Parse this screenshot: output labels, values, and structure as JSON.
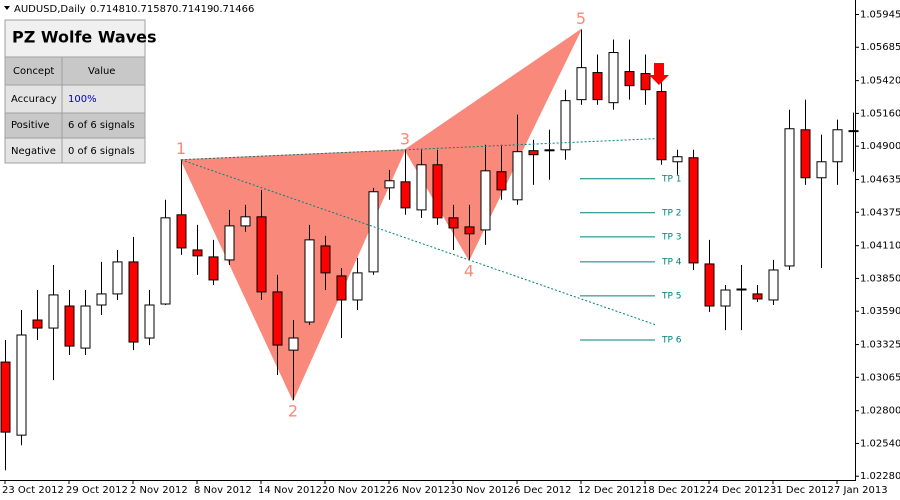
{
  "header": {
    "symbol": "AUDUSD,Daily",
    "ohlc": [
      0.71481,
      0.71587,
      0.71419,
      0.71466
    ]
  },
  "panel": {
    "title": "PZ Wolfe Waves",
    "columns": [
      "Concept",
      "Value"
    ],
    "rows": [
      [
        "Accuracy",
        "100%"
      ],
      [
        "Positive",
        "6 of 6 signals"
      ],
      [
        "Negative",
        "0 of 6 signals"
      ]
    ]
  },
  "chart_data": {
    "type": "candlestick",
    "categories": [
      "23 Oct 2012",
      null,
      null,
      null,
      "29 Oct 2012",
      null,
      null,
      null,
      "2 Nov 2012",
      null,
      null,
      null,
      "8 Nov 2012",
      null,
      null,
      null,
      "14 Nov 2012",
      null,
      null,
      null,
      "20 Nov 2012",
      null,
      null,
      null,
      "26 Nov 2012",
      null,
      null,
      null,
      "30 Nov 2012",
      null,
      null,
      null,
      "6 Dec 2012",
      null,
      null,
      null,
      "12 Dec 2012",
      null,
      null,
      null,
      "18 Dec 2012",
      null,
      null,
      null,
      "24 Dec 2012",
      null,
      null,
      null,
      "31 Dec 2012",
      null,
      null,
      null,
      "7 Jan 2013",
      null
    ],
    "open": [
      1.03186,
      1.02606,
      1.0352,
      1.03456,
      1.03631,
      1.03297,
      1.03639,
      1.03727,
      1.03981,
      1.03377,
      1.03647,
      1.04355,
      1.04076,
      1.04021,
      1.03997,
      1.04267,
      1.04339,
      1.03743,
      1.03281,
      1.03504,
      1.04108,
      1.0387,
      1.03679,
      1.03902,
      1.04569,
      1.04617,
      1.04394,
      1.04752,
      1.04331,
      1.04259,
      1.04235,
      1.04697,
      1.04474,
      1.04864,
      1.04871,
      1.04871,
      1.05269,
      1.05484,
      1.05245,
      1.05492,
      1.05476,
      1.05333,
      1.04776,
      1.04808,
      1.03965,
      1.03631,
      1.03766,
      1.03727,
      1.03679,
      1.03949,
      1.0503,
      1.04649,
      1.04776,
      1.05023
    ],
    "high": [
      1.03361,
      1.03599,
      1.03758,
      1.03957,
      1.03758,
      1.03758,
      1.03981,
      1.04076,
      1.0418,
      1.03758,
      1.04474,
      1.04792,
      1.04275,
      1.04156,
      1.04394,
      1.04434,
      1.04553,
      1.03878,
      1.0352,
      1.04275,
      1.04188,
      1.03933,
      1.04013,
      1.04569,
      1.04712,
      1.04871,
      1.04871,
      1.04871,
      1.04434,
      1.04434,
      1.04911,
      1.04911,
      1.0515,
      1.04951,
      1.0503,
      1.05348,
      1.05825,
      1.05627,
      1.05746,
      1.05746,
      1.05627,
      1.05428,
      1.04871,
      1.04871,
      1.04156,
      1.03798,
      1.03957,
      1.03798,
      1.03997,
      1.05189,
      1.05269,
      1.04991,
      1.0511,
      1.05166
    ],
    "low": [
      1.02327,
      1.02526,
      1.03361,
      1.03043,
      1.03242,
      1.03242,
      1.0356,
      1.03679,
      1.03281,
      1.03321,
      1.03639,
      1.04037,
      1.03878,
      1.03798,
      1.03957,
      1.0422,
      1.03679,
      1.03083,
      1.02884,
      1.0348,
      1.03758,
      1.03377,
      1.03599,
      1.03878,
      1.04474,
      1.04355,
      1.04331,
      1.04275,
      1.04076,
      1.03997,
      1.04116,
      1.04474,
      1.04434,
      1.04593,
      1.04633,
      1.04792,
      1.05229,
      1.05229,
      1.05189,
      1.05269,
      1.05229,
      1.04752,
      1.04673,
      1.03917,
      1.03584,
      1.0344,
      1.0344,
      1.03663,
      1.03639,
      1.03917,
      1.04593,
      1.03933,
      1.04593,
      1.04697
    ],
    "close": [
      1.0263,
      1.03401,
      1.03456,
      1.03719,
      1.03313,
      1.03631,
      1.03727,
      1.03981,
      1.03345,
      1.03639,
      1.04331,
      1.04092,
      1.04029,
      1.03838,
      1.04267,
      1.04339,
      1.03743,
      1.03321,
      1.03377,
      1.04156,
      1.03894,
      1.03679,
      1.03894,
      1.04538,
      1.04625,
      1.0441,
      1.04752,
      1.04331,
      1.04251,
      1.04204,
      1.04704,
      1.04553,
      1.04856,
      1.04832,
      1.04864,
      1.05261,
      1.05523,
      1.05269,
      1.05643,
      1.0538,
      1.05348,
      1.04792,
      1.04816,
      1.03973,
      1.03631,
      1.03758,
      1.03762,
      1.03687,
      1.03917,
      1.05038,
      1.04649,
      1.04776,
      1.0503,
      1.05023
    ],
    "up_color": "#ffffff",
    "down_color": "#ff0000",
    "ylim": [
      1.0225,
      1.0606
    ],
    "yticks": [
      {
        "value": 1.0228,
        "label": "1.02280"
      },
      {
        "value": 1.0254,
        "label": "1.02540"
      },
      {
        "value": 1.028,
        "label": "1.02800"
      },
      1.03065,
      1.03325,
      {
        "value": 1.0359,
        "label": "1.03590"
      },
      {
        "value": 1.0385,
        "label": "1.03850"
      },
      {
        "value": 1.0411,
        "label": "1.04110"
      },
      1.04375,
      1.04635,
      {
        "value": 1.049,
        "label": "1.04900"
      },
      {
        "value": 1.0516,
        "label": "1.05160"
      },
      {
        "value": 1.0542,
        "label": "1.05420"
      },
      1.05685,
      1.05945
    ],
    "wolfe_points": [
      {
        "label": "1",
        "index": 11,
        "value": 1.04792
      },
      {
        "label": "2",
        "index": 18,
        "value": 1.02884
      },
      {
        "label": "3",
        "index": 25,
        "value": 1.04871
      },
      {
        "label": "4",
        "index": 29,
        "value": 1.03997
      },
      {
        "label": "5",
        "index": 36,
        "value": 1.05825
      }
    ],
    "pattern_color": "#f9897a",
    "tp_levels": [
      {
        "label": "TP 1",
        "value": 1.04641
      },
      {
        "label": "TP 2",
        "value": 1.04371
      },
      {
        "label": "TP 3",
        "value": 1.0418
      },
      {
        "label": "TP 4",
        "value": 1.03981
      },
      {
        "label": "TP 5",
        "value": 1.03711
      },
      {
        "label": "TP 6",
        "value": 1.03361
      }
    ],
    "tp_color": "#008080"
  }
}
